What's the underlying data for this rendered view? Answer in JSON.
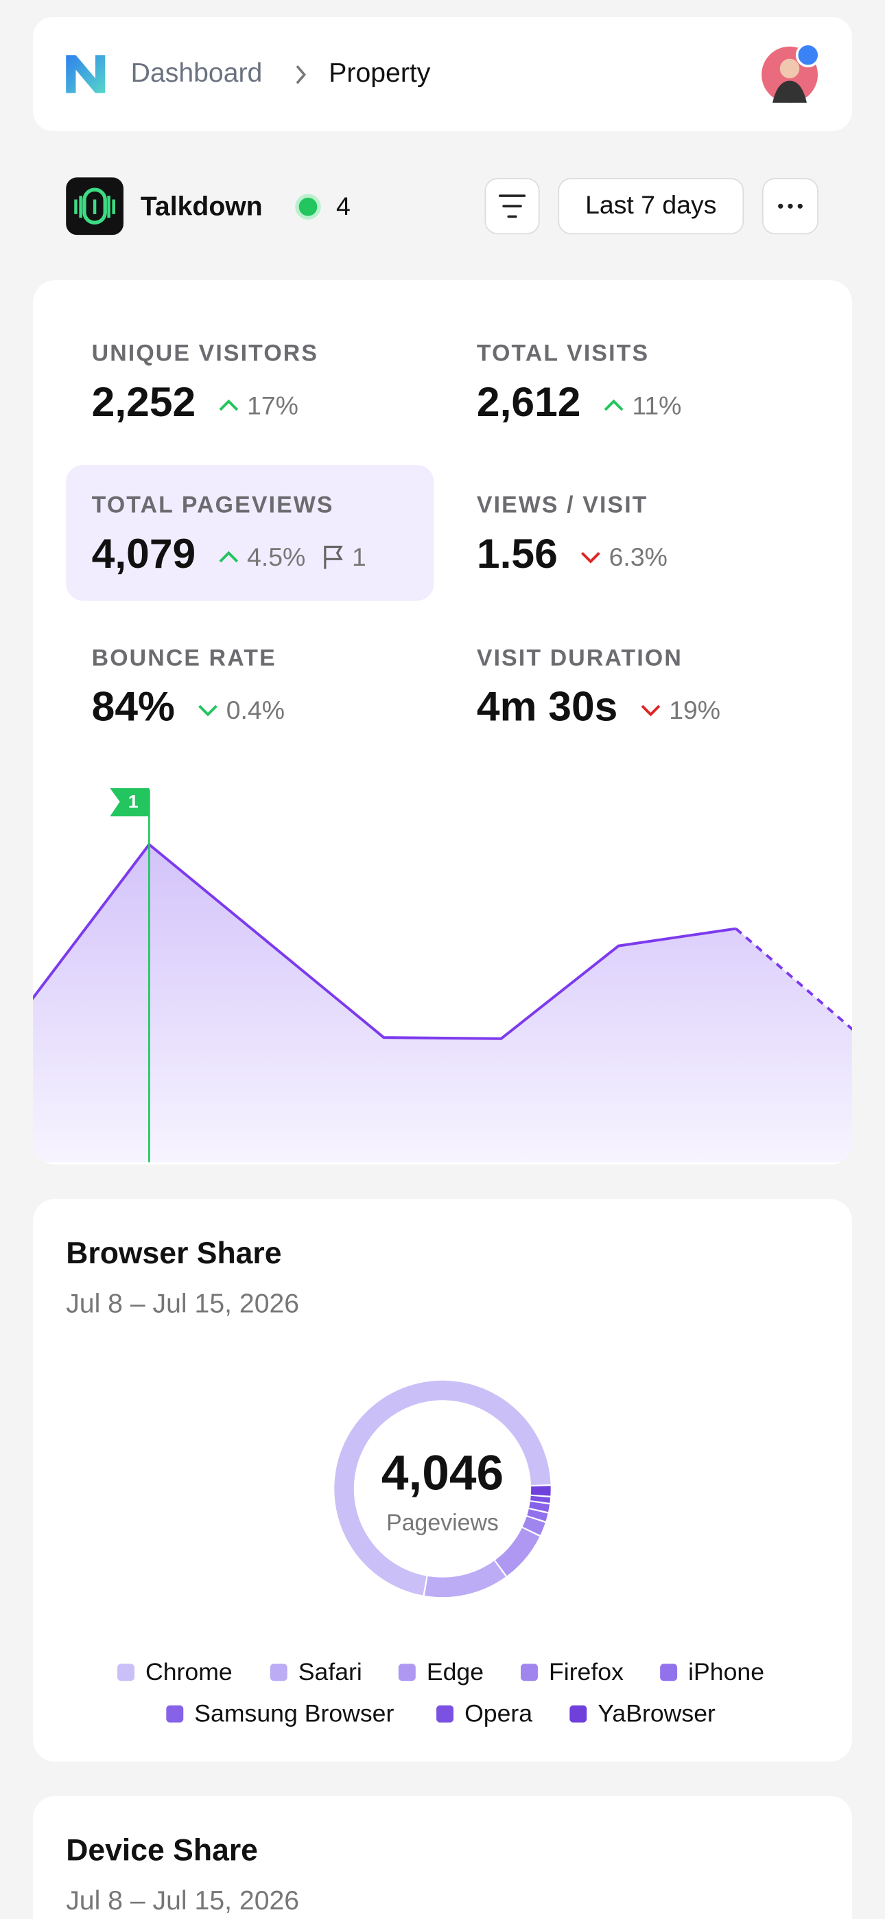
{
  "header": {
    "breadcrumb": [
      "Dashboard",
      "Property"
    ]
  },
  "toolbar": {
    "app_name": "Talkdown",
    "online_count": 4,
    "date_range": "Last 7 days"
  },
  "stats": [
    {
      "label": "UNIQUE VISITORS",
      "value": "2,252",
      "change": "17%",
      "direction": "up"
    },
    {
      "label": "TOTAL VISITS",
      "value": "2,612",
      "change": "11%",
      "direction": "up"
    },
    {
      "label": "TOTAL PAGEVIEWS",
      "value": "4,079",
      "change": "4.5%",
      "direction": "up",
      "selected": true,
      "flags": 1
    },
    {
      "label": "VIEWS / VISIT",
      "value": "1.56",
      "change": "6.3%",
      "direction": "down"
    },
    {
      "label": "BOUNCE RATE",
      "value": "84%",
      "change": "0.4%",
      "direction": "down-good"
    },
    {
      "label": "VISIT DURATION",
      "value": "4m 30s",
      "change": "19%",
      "direction": "down"
    }
  ],
  "chart_data": [
    {
      "type": "area",
      "values": [
        433,
        846,
        589,
        332,
        329,
        576,
        622,
        352
      ],
      "ylim": [
        0,
        1000
      ],
      "color": "#7c3aed",
      "projected_from": 6,
      "flag": {
        "at": 1,
        "label": "1",
        "color": "#22c55e"
      }
    },
    {
      "type": "donut",
      "title": "Browser Share",
      "subtitle": "Jul 8 – Jul 15, 2026",
      "total": {
        "value": 4046,
        "label": "4,046"
      },
      "center_label": "Pageviews",
      "categories": [
        "Chrome",
        "Safari",
        "Edge",
        "Firefox",
        "iPhone",
        "Samsung Browser",
        "Opera",
        "YaBrowser"
      ],
      "values": [
        2900,
        518,
        316,
        89,
        57,
        55,
        42,
        69
      ],
      "colors": [
        "#cbbff8",
        "#bcabf5",
        "#ae98f2",
        "#a085ef",
        "#9272ec",
        "#8562e7",
        "#7a51e2",
        "#6f40dc"
      ]
    }
  ],
  "device_share": {
    "title": "Device Share",
    "subtitle": "Jul 8 – Jul 15, 2026"
  }
}
